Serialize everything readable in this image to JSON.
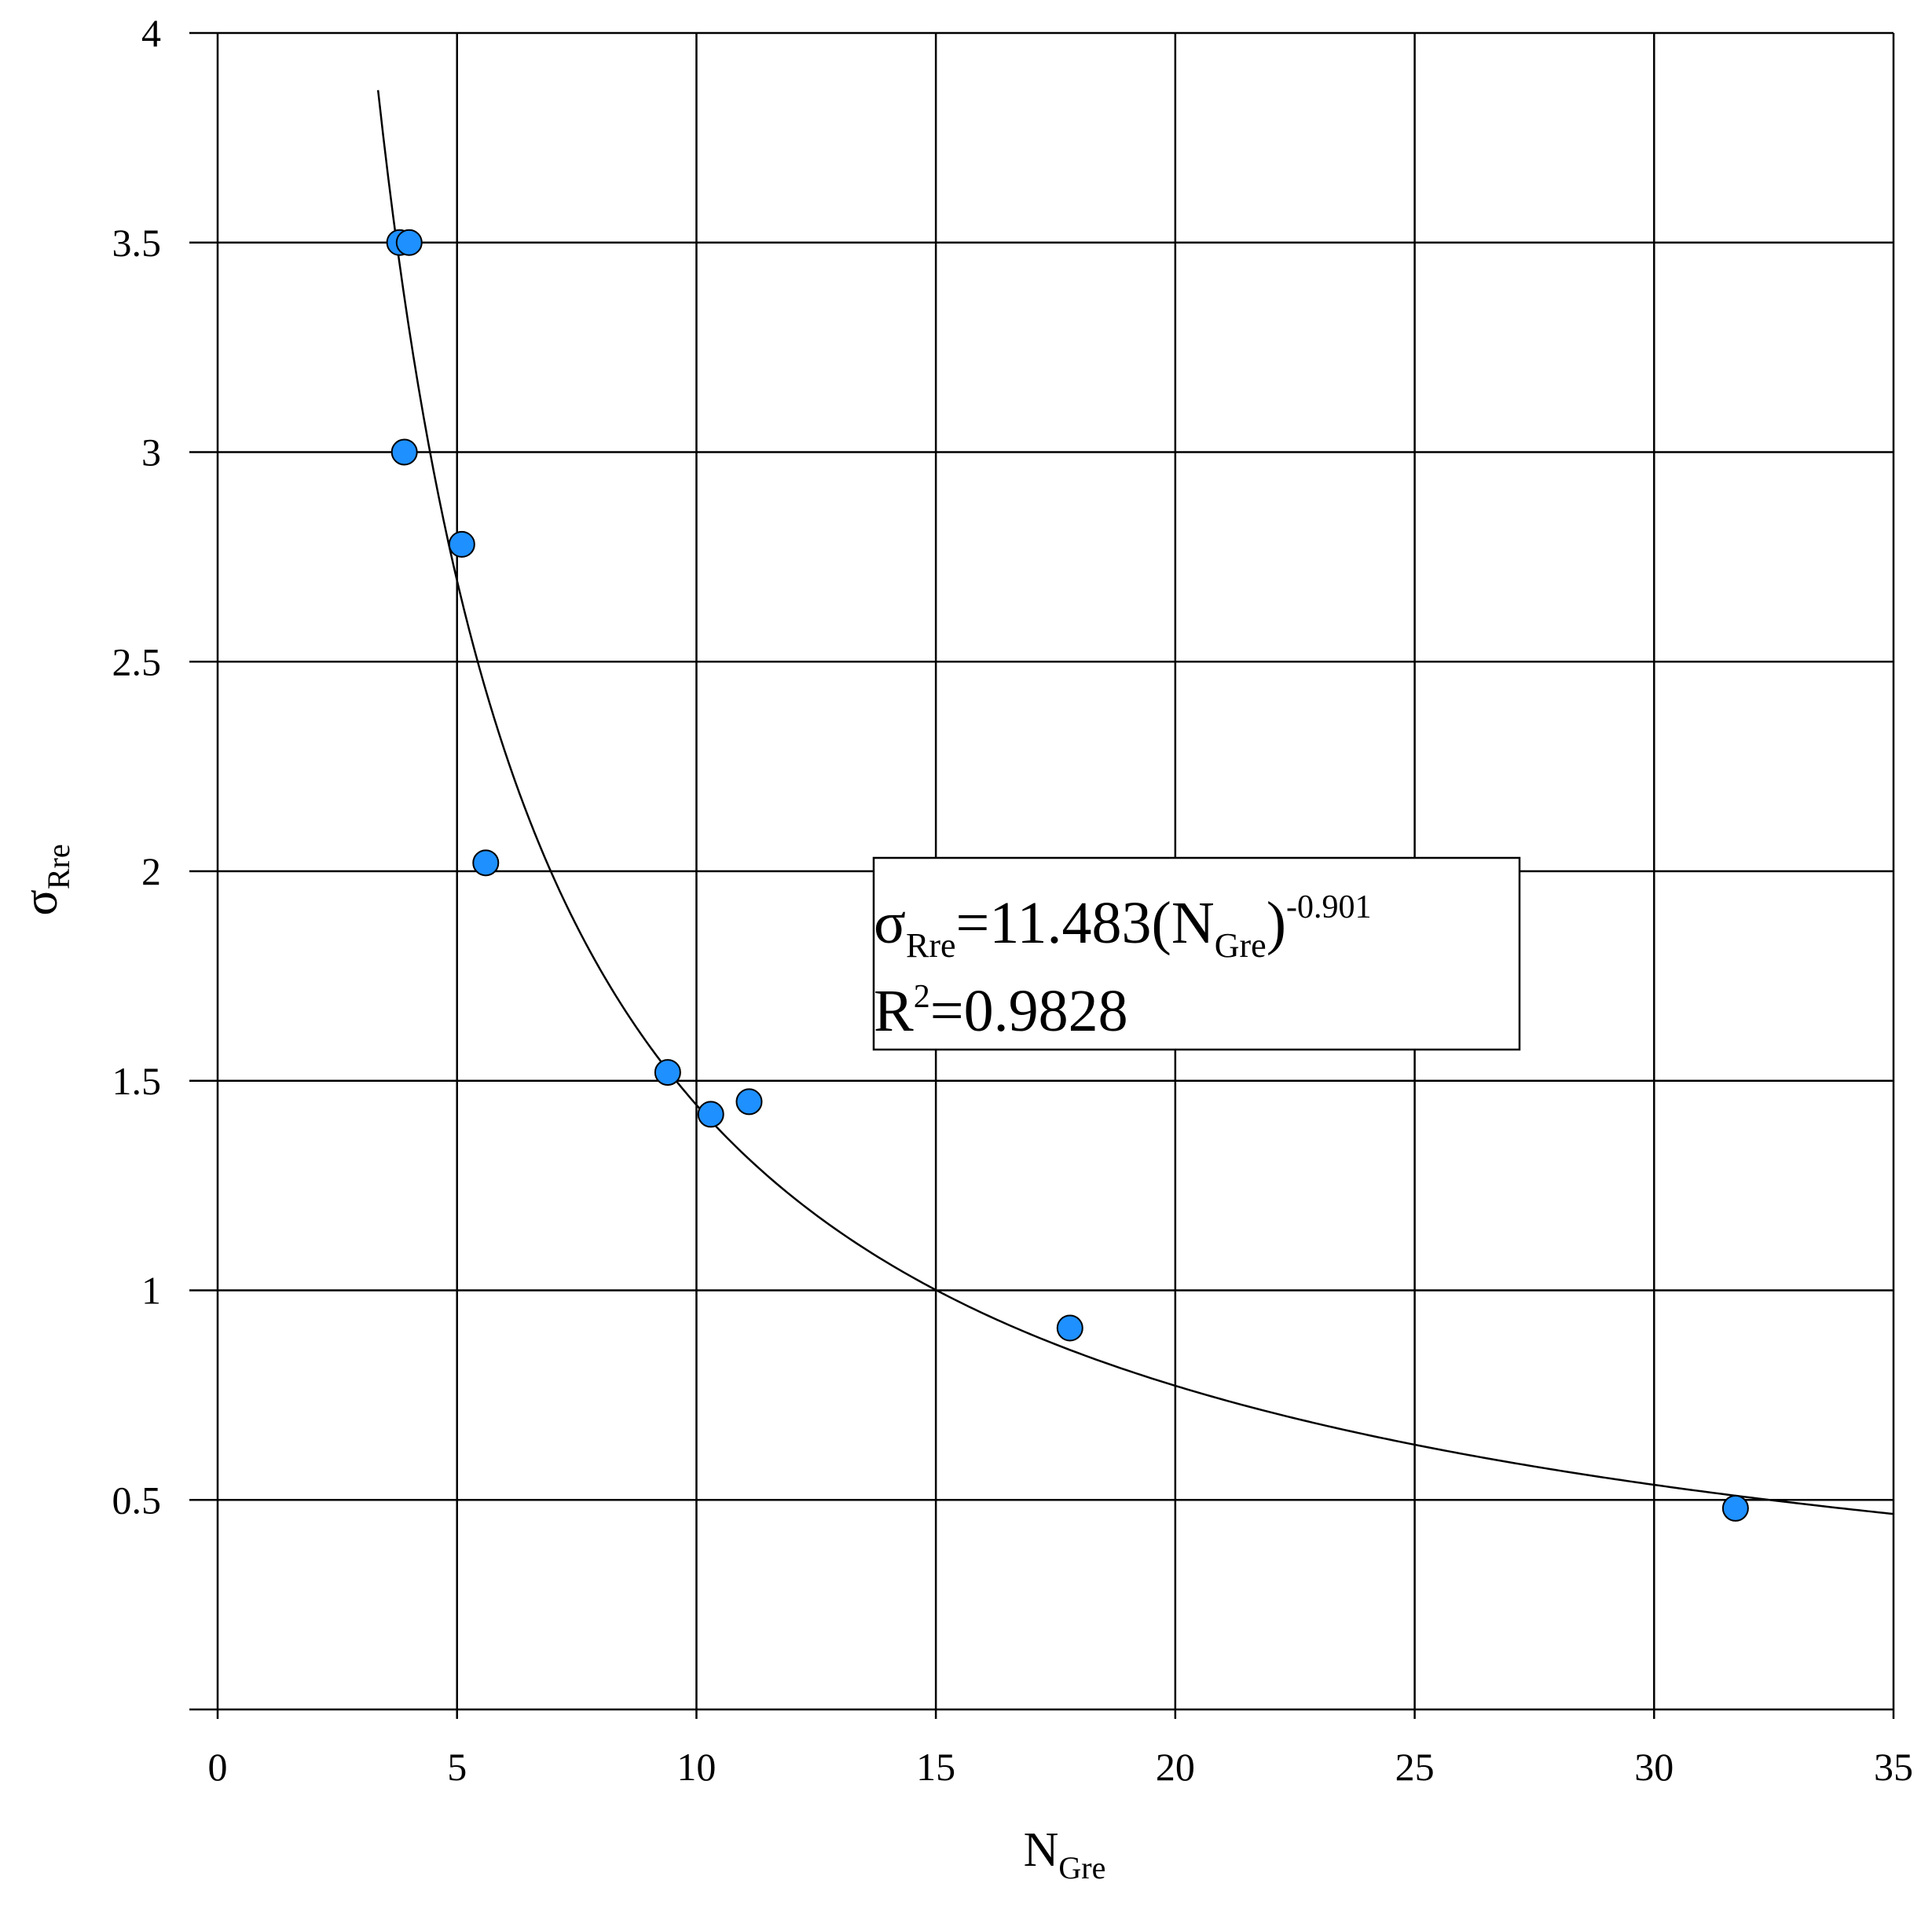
{
  "chart_data": {
    "type": "scatter",
    "title": "",
    "xlabel": {
      "main": "N",
      "sub": "Gre"
    },
    "ylabel": {
      "main": "σ",
      "sub": "Rre"
    },
    "xlim": [
      0,
      35
    ],
    "ylim": [
      0,
      4
    ],
    "xticks": [
      "0",
      "5",
      "10",
      "15",
      "20",
      "25",
      "30",
      "35"
    ],
    "yticks": [
      "0.5",
      "1",
      "1.5",
      "2",
      "2.5",
      "3",
      "3.5",
      "4"
    ],
    "grid": true,
    "series": [
      {
        "points": [
          {
            "x": 3.8,
            "y": 3.5
          },
          {
            "x": 4.0,
            "y": 3.5
          },
          {
            "x": 3.9,
            "y": 3.0
          },
          {
            "x": 5.1,
            "y": 2.78
          },
          {
            "x": 5.6,
            "y": 2.02
          },
          {
            "x": 9.4,
            "y": 1.52
          },
          {
            "x": 10.3,
            "y": 1.42
          },
          {
            "x": 11.1,
            "y": 1.45
          },
          {
            "x": 17.8,
            "y": 0.91
          },
          {
            "x": 31.7,
            "y": 0.48
          }
        ],
        "color": "#1e90ff"
      }
    ],
    "fit": {
      "type": "power",
      "coefficient": 11.483,
      "exponent": -0.901,
      "x_range": [
        3.35,
        35
      ],
      "color": "#000000"
    },
    "annotation": {
      "eq_sigma": "σ",
      "eq_sigma_sub": "Rre",
      "eq_mid": "=11.483(N",
      "eq_n_sub": "Gre",
      "eq_close": ")",
      "eq_exp": "-0.901",
      "r2_r": "R",
      "r2_sup": "2",
      "r2_val": "=0.9828"
    }
  }
}
